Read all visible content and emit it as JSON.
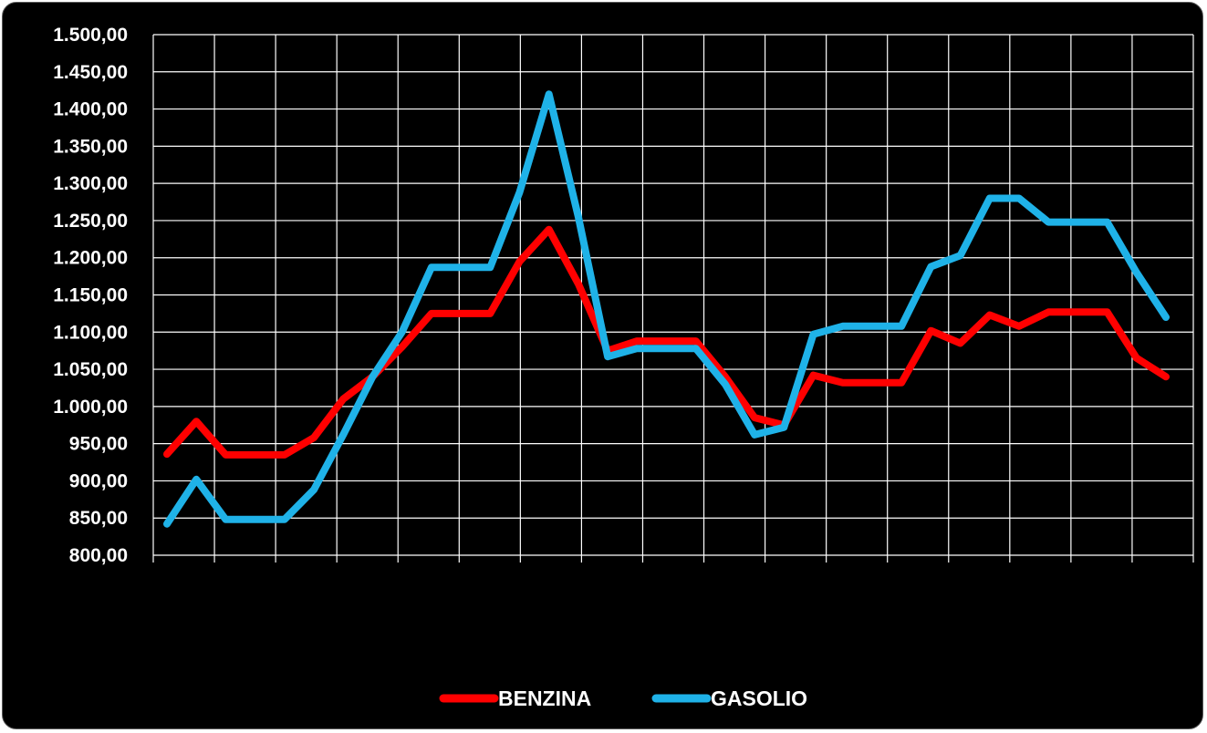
{
  "chart_data": {
    "type": "line",
    "title": "",
    "xlabel": "",
    "ylabel": "",
    "ylim": [
      800,
      1500
    ],
    "ytick_labels": [
      "800,00",
      "850,00",
      "900,00",
      "950,00",
      "1.000,00",
      "1.050,00",
      "1.100,00",
      "1.150,00",
      "1.200,00",
      "1.250,00",
      "1.300,00",
      "1.350,00",
      "1.400,00",
      "1.450,00",
      "1.500,00"
    ],
    "grid": true,
    "legend": "bottom-center",
    "background": "#000000",
    "series": [
      {
        "name": "BENZINA",
        "color": "#ff0000",
        "values": [
          936,
          980,
          935,
          935,
          935,
          958,
          1010,
          1040,
          1080,
          1125,
          1125,
          1125,
          1195,
          1238,
          1165,
          1075,
          1088,
          1088,
          1088,
          1040,
          985,
          975,
          1042,
          1032,
          1032,
          1032,
          1102,
          1085,
          1123,
          1108,
          1127,
          1127,
          1127,
          1065,
          1040
        ]
      },
      {
        "name": "GASOLIO",
        "color": "#1fb2e8",
        "values": [
          842,
          902,
          848,
          848,
          848,
          888,
          962,
          1040,
          1100,
          1187,
          1187,
          1187,
          1288,
          1420,
          1255,
          1067,
          1078,
          1078,
          1078,
          1030,
          962,
          972,
          1097,
          1108,
          1108,
          1108,
          1188,
          1203,
          1280,
          1280,
          1248,
          1248,
          1248,
          1180,
          1120
        ]
      }
    ]
  }
}
